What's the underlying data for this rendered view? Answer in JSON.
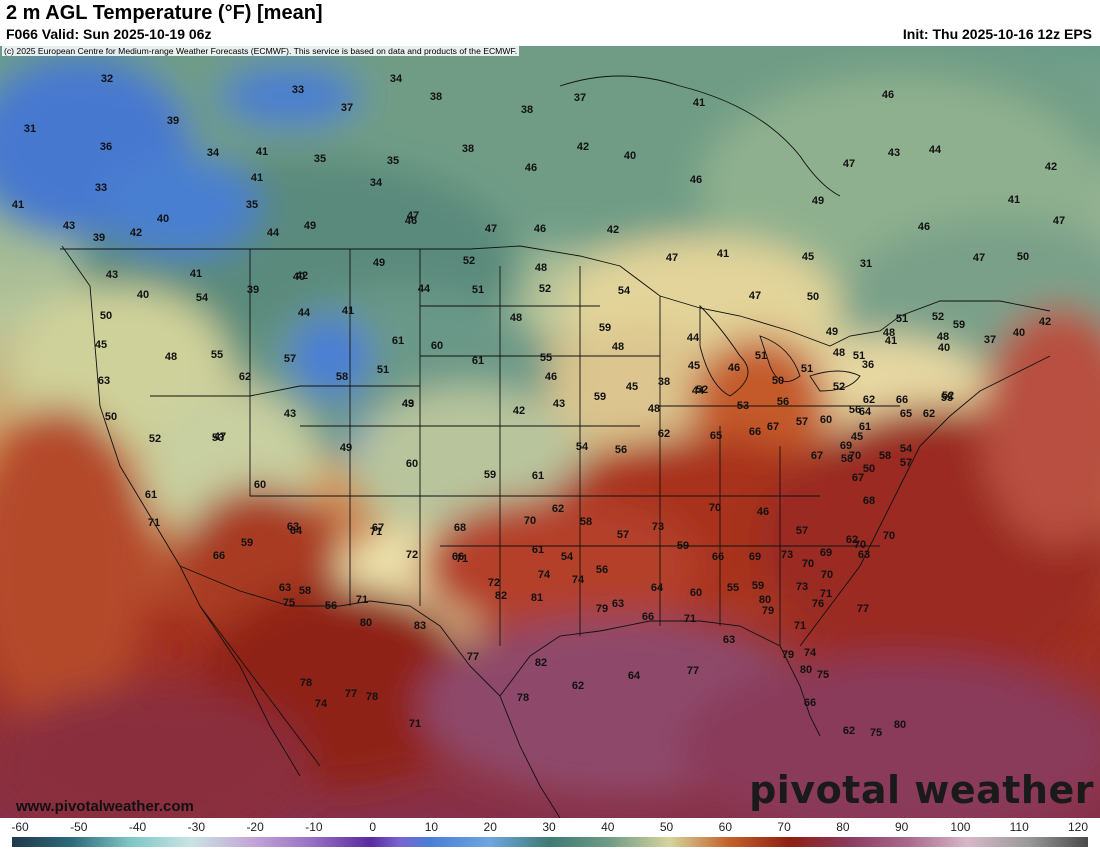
{
  "header": {
    "title": "2 m AGL Temperature (°F) [mean]",
    "valid": "F066 Valid: Sun 2025-10-19 06z",
    "init": "Init: Thu 2025-10-16 12z EPS"
  },
  "map": {
    "copyright": "(c) 2025 European Centre for Medium-range Weather Forecasts (ECMWF). This service is based on data and products of the ECMWF.",
    "website": "www.pivotalweather.com",
    "brand": "pivotal weather",
    "labels": [
      "32",
      "34",
      "33",
      "37",
      "38",
      "38",
      "37",
      "41",
      "46",
      "31",
      "39",
      "36",
      "34",
      "41",
      "35",
      "35",
      "38",
      "42",
      "40",
      "47",
      "46",
      "42",
      "33",
      "41",
      "34",
      "46",
      "43",
      "44",
      "41",
      "40",
      "35",
      "47",
      "49",
      "41",
      "42",
      "43",
      "46",
      "47",
      "46",
      "42",
      "47",
      "41",
      "46",
      "47",
      "39",
      "41",
      "44",
      "49",
      "49",
      "52",
      "48",
      "45",
      "31",
      "47",
      "50",
      "43",
      "40",
      "39",
      "42",
      "44",
      "51",
      "52",
      "54",
      "47",
      "50",
      "54",
      "50",
      "40",
      "41",
      "44",
      "48",
      "59",
      "49",
      "51",
      "52",
      "48",
      "51",
      "41",
      "37",
      "40",
      "42",
      "45",
      "48",
      "55",
      "57",
      "61",
      "60",
      "61",
      "55",
      "48",
      "44",
      "45",
      "51",
      "48",
      "36",
      "40",
      "48",
      "59",
      "63",
      "62",
      "58",
      "51",
      "49",
      "46",
      "59",
      "45",
      "38",
      "44",
      "46",
      "50",
      "51",
      "52",
      "56",
      "62",
      "66",
      "52",
      "50",
      "52",
      "47",
      "43",
      "43",
      "42",
      "43",
      "48",
      "52",
      "53",
      "56",
      "60",
      "64",
      "65",
      "62",
      "55",
      "53",
      "49",
      "60",
      "59",
      "61",
      "54",
      "56",
      "62",
      "65",
      "66",
      "67",
      "57",
      "58",
      "61",
      "58",
      "57",
      "45",
      "50",
      "54",
      "61",
      "60",
      "63",
      "67",
      "68",
      "70",
      "62",
      "58",
      "57",
      "73",
      "70",
      "46",
      "57",
      "62",
      "67",
      "68",
      "67",
      "69",
      "70",
      "71",
      "66",
      "59",
      "64",
      "71",
      "66",
      "61",
      "54",
      "56",
      "59",
      "66",
      "69",
      "73",
      "70",
      "69",
      "70",
      "70",
      "63",
      "58",
      "56",
      "71",
      "72",
      "71",
      "72",
      "74",
      "74",
      "63",
      "64",
      "60",
      "55",
      "59",
      "79",
      "73",
      "76",
      "70",
      "63",
      "80",
      "83",
      "77",
      "82",
      "81",
      "79",
      "66",
      "71",
      "63",
      "80",
      "71",
      "74",
      "71",
      "77",
      "75",
      "78",
      "74",
      "77",
      "78",
      "71",
      "78",
      "82",
      "62",
      "64",
      "77",
      "79",
      "80",
      "75",
      "66",
      "62",
      "75",
      "80"
    ]
  },
  "colorbar": {
    "ticks": [
      "-60",
      "-50",
      "-40",
      "-30",
      "-20",
      "-10",
      "0",
      "10",
      "20",
      "30",
      "40",
      "50",
      "60",
      "70",
      "80",
      "90",
      "100",
      "110",
      "120"
    ]
  }
}
